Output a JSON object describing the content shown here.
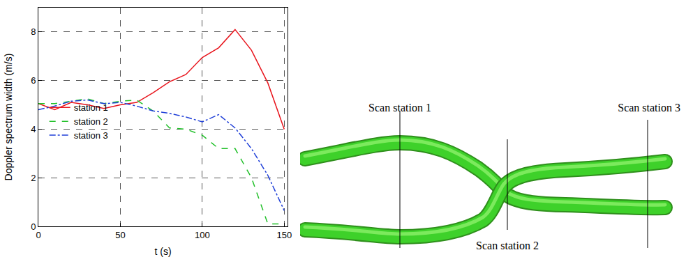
{
  "chart_data": {
    "type": "line",
    "x_label": "t (s)",
    "y_label": "Doppler spectrum width (m/s)",
    "x": [
      0,
      10,
      20,
      30,
      40,
      50,
      60,
      70,
      80,
      90,
      100,
      110,
      120,
      130,
      140,
      150
    ],
    "series": [
      {
        "name": "station 1",
        "color": "#e8141c",
        "line_style": "solid",
        "values": [
          5.05,
          4.8,
          5.1,
          5.0,
          4.85,
          5.0,
          5.1,
          5.5,
          5.95,
          6.25,
          6.95,
          7.35,
          8.1,
          7.25,
          5.9,
          4.0
        ]
      },
      {
        "name": "station 2",
        "color": "#22c02a",
        "line_style": "dash",
        "values": [
          5.05,
          5.05,
          5.15,
          5.25,
          5.05,
          5.15,
          5.2,
          4.75,
          4.05,
          4.0,
          3.75,
          3.2,
          3.2,
          2.0,
          0.1,
          0.1
        ]
      },
      {
        "name": "station 3",
        "color": "#1f3fd8",
        "line_style": "dashdot",
        "values": [
          4.8,
          4.95,
          5.15,
          5.2,
          5.05,
          5.1,
          4.95,
          4.75,
          4.65,
          4.5,
          4.3,
          4.6,
          4.05,
          3.2,
          2.1,
          0.65
        ]
      }
    ],
    "xlim": [
      0,
      152
    ],
    "xticks": [
      0,
      50,
      100,
      150
    ],
    "ylim": [
      0,
      9
    ],
    "yticks": [
      0,
      2,
      4,
      6,
      8
    ],
    "grid": true,
    "legend": "left"
  },
  "diagram": {
    "labels": [
      "Scan station 1",
      "Scan station 2",
      "Scan station 3"
    ]
  }
}
